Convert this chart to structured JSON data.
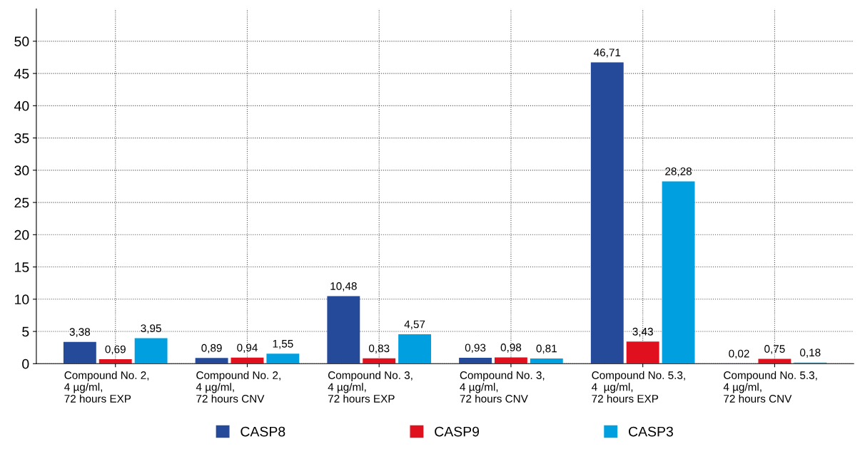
{
  "chart_data": {
    "type": "bar",
    "categories": [
      "Compound No. 2,\n4 µg/ml,\n72 hours EXP",
      "Compound No. 2,\n4 µg/ml,\n72 hours CNV",
      "Compound No. 3,\n4 µg/ml,\n72 hours EXP",
      "Compound No. 3,\n4 µg/ml,\n72 hours CNV",
      "Compound No. 5.3,\n4  µg/ml,\n72 hours EXP",
      "Compound No. 5.3,\n4 µg/ml,\n72 hours CNV"
    ],
    "series": [
      {
        "name": "CASP8",
        "color": "#264a9a",
        "values": [
          3.38,
          0.89,
          10.48,
          0.93,
          46.71,
          0.02
        ],
        "value_labels": [
          "3,38",
          "0,89",
          "10,48",
          "0,93",
          "46,71",
          "0,02"
        ]
      },
      {
        "name": "CASP9",
        "color": "#e0101e",
        "values": [
          0.69,
          0.94,
          0.83,
          0.98,
          3.43,
          0.75
        ],
        "value_labels": [
          "0,69",
          "0,94",
          "0,83",
          "0,98",
          "3,43",
          "0,75"
        ]
      },
      {
        "name": "CASP3",
        "color": "#00a0e0",
        "values": [
          3.95,
          1.55,
          4.57,
          0.81,
          28.28,
          0.18
        ],
        "value_labels": [
          "3,95",
          "1,55",
          "4,57",
          "0,81",
          "28,28",
          "0,18"
        ]
      }
    ],
    "ylim": [
      0,
      55
    ],
    "yticks": [
      0,
      5,
      10,
      15,
      20,
      25,
      30,
      35,
      40,
      45,
      50
    ],
    "grid": true,
    "legend": "bottom"
  }
}
